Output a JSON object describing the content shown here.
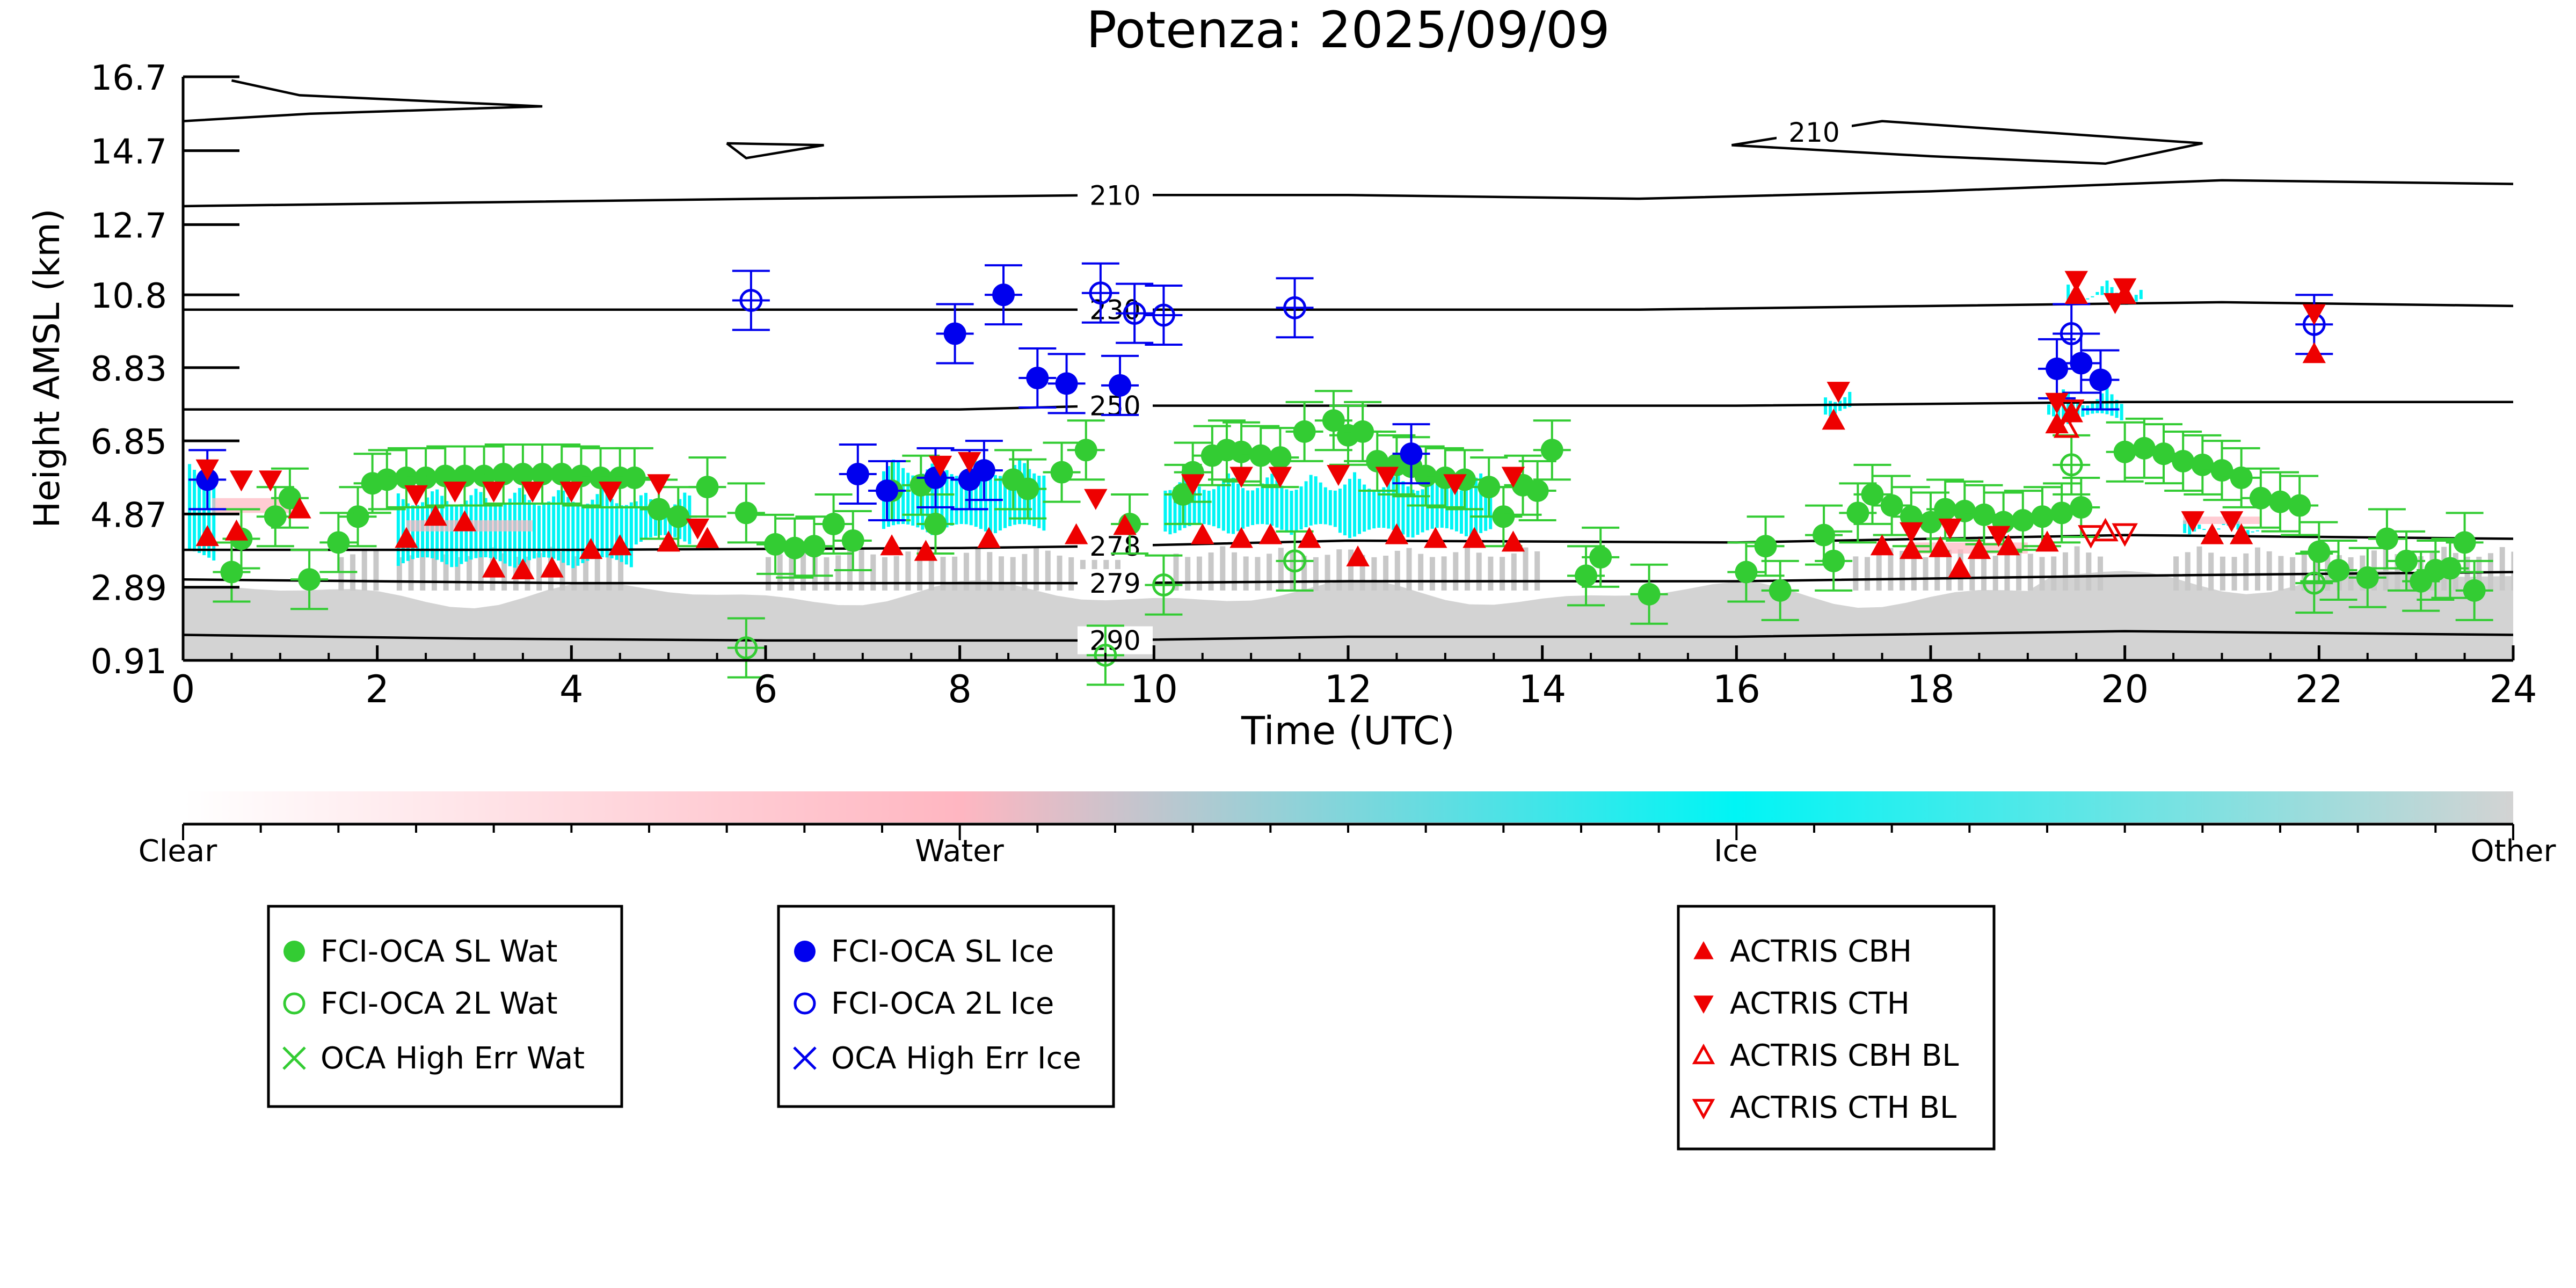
{
  "chart_data": {
    "type": "scatter",
    "title": "Potenza: 2025/09/09",
    "xlabel": "Time (UTC)",
    "ylabel": "Height AMSL (km)",
    "xlim": [
      0,
      24
    ],
    "ylim": [
      0.91,
      16.7
    ],
    "xticks": [
      0,
      2,
      4,
      6,
      8,
      10,
      12,
      14,
      16,
      18,
      20,
      22,
      24
    ],
    "yticks": [
      0.91,
      2.89,
      4.87,
      6.85,
      8.83,
      10.8,
      12.7,
      14.7,
      16.7
    ],
    "ytick_labels": [
      "0.91",
      "2.89",
      "4.87",
      "6.85",
      "8.83",
      "10.8",
      "12.7",
      "14.7",
      "16.7"
    ],
    "colorbar": {
      "labels": [
        "Clear",
        "Water",
        "Ice",
        "Other"
      ],
      "colors": [
        "#ffffff",
        "#ffb6c1",
        "#00f5f5",
        "#d3d3d3"
      ]
    },
    "contours": [
      {
        "label": "210",
        "label_x": 9.6,
        "points": [
          [
            0,
            13.2
          ],
          [
            3,
            13.3
          ],
          [
            6,
            13.4
          ],
          [
            9.5,
            13.5
          ],
          [
            12,
            13.5
          ],
          [
            15,
            13.4
          ],
          [
            18,
            13.6
          ],
          [
            21,
            13.9
          ],
          [
            24,
            13.8
          ]
        ]
      },
      {
        "label": "230",
        "label_x": 9.6,
        "points": [
          [
            0,
            10.4
          ],
          [
            3,
            10.4
          ],
          [
            6,
            10.4
          ],
          [
            9.5,
            10.4
          ],
          [
            12,
            10.4
          ],
          [
            15,
            10.4
          ],
          [
            18,
            10.5
          ],
          [
            21,
            10.6
          ],
          [
            24,
            10.5
          ]
        ]
      },
      {
        "label": "250",
        "label_x": 9.6,
        "points": [
          [
            0,
            7.7
          ],
          [
            4,
            7.7
          ],
          [
            8,
            7.7
          ],
          [
            9.5,
            7.8
          ],
          [
            12,
            7.8
          ],
          [
            16,
            7.8
          ],
          [
            20,
            7.9
          ],
          [
            24,
            7.9
          ]
        ]
      },
      {
        "label": "278",
        "label_x": 9.6,
        "points": [
          [
            0,
            3.9
          ],
          [
            4,
            3.9
          ],
          [
            8,
            3.95
          ],
          [
            9.5,
            4.0
          ],
          [
            12,
            4.15
          ],
          [
            16,
            4.1
          ],
          [
            20,
            4.3
          ],
          [
            24,
            4.2
          ]
        ]
      },
      {
        "label": "279",
        "label_x": 9.6,
        "points": [
          [
            0,
            3.1
          ],
          [
            4,
            3.0
          ],
          [
            8,
            3.0
          ],
          [
            9.5,
            3.0
          ],
          [
            12,
            3.05
          ],
          [
            16,
            3.05
          ],
          [
            20,
            3.2
          ],
          [
            24,
            3.3
          ]
        ]
      },
      {
        "label": "290",
        "label_x": 9.6,
        "points": [
          [
            0,
            1.6
          ],
          [
            3,
            1.5
          ],
          [
            6,
            1.45
          ],
          [
            9.5,
            1.45
          ],
          [
            12,
            1.55
          ],
          [
            16,
            1.55
          ],
          [
            20,
            1.7
          ],
          [
            24,
            1.6
          ]
        ]
      }
    ],
    "contour_islands": [
      {
        "label": "210",
        "label_x": 16.8,
        "points": [
          [
            15.95,
            14.85
          ],
          [
            17.5,
            15.5
          ],
          [
            20.8,
            14.9
          ],
          [
            19.8,
            14.35
          ],
          [
            18.0,
            14.55
          ],
          [
            15.95,
            14.85
          ]
        ]
      },
      {
        "label": "",
        "label_x": 0,
        "points": [
          [
            5.6,
            14.9
          ],
          [
            6.6,
            14.85
          ],
          [
            5.8,
            14.5
          ],
          [
            5.6,
            14.9
          ]
        ]
      },
      {
        "label": "",
        "label_x": 0,
        "points": [
          [
            0.5,
            16.6
          ],
          [
            1.2,
            16.2
          ],
          [
            3.7,
            15.9
          ],
          [
            1.3,
            15.7
          ],
          [
            0,
            15.5
          ]
        ]
      }
    ],
    "series": [
      {
        "name": "FCI-OCA SL Wat",
        "marker": "circle-filled",
        "color": "#33cc33",
        "points": [
          [
            0.5,
            3.3
          ],
          [
            0.6,
            4.2
          ],
          [
            0.95,
            4.8
          ],
          [
            1.1,
            5.3
          ],
          [
            1.3,
            3.1
          ],
          [
            1.6,
            4.1
          ],
          [
            1.8,
            4.8
          ],
          [
            1.95,
            5.7
          ],
          [
            2.1,
            5.8
          ],
          [
            2.3,
            5.85
          ],
          [
            2.5,
            5.85
          ],
          [
            2.7,
            5.9
          ],
          [
            2.9,
            5.9
          ],
          [
            3.1,
            5.9
          ],
          [
            3.3,
            5.95
          ],
          [
            3.5,
            5.95
          ],
          [
            3.7,
            5.95
          ],
          [
            3.9,
            5.95
          ],
          [
            4.1,
            5.9
          ],
          [
            4.3,
            5.85
          ],
          [
            4.5,
            5.85
          ],
          [
            4.65,
            5.85
          ],
          [
            4.9,
            5.0
          ],
          [
            5.1,
            4.8
          ],
          [
            5.4,
            5.6
          ],
          [
            5.8,
            4.9
          ],
          [
            6.1,
            4.05
          ],
          [
            6.3,
            3.95
          ],
          [
            6.5,
            4.0
          ],
          [
            6.7,
            4.6
          ],
          [
            6.9,
            4.15
          ],
          [
            7.3,
            5.5
          ],
          [
            7.6,
            5.65
          ],
          [
            7.75,
            4.6
          ],
          [
            8.55,
            5.8
          ],
          [
            8.7,
            5.55
          ],
          [
            9.05,
            6.0
          ],
          [
            9.3,
            6.6
          ],
          [
            9.75,
            4.6
          ],
          [
            10.3,
            5.4
          ],
          [
            10.4,
            6.0
          ],
          [
            10.6,
            6.45
          ],
          [
            10.75,
            6.6
          ],
          [
            10.9,
            6.55
          ],
          [
            11.1,
            6.45
          ],
          [
            11.3,
            6.4
          ],
          [
            11.55,
            7.1
          ],
          [
            11.85,
            7.4
          ],
          [
            12.0,
            7.0
          ],
          [
            12.15,
            7.1
          ],
          [
            12.3,
            6.3
          ],
          [
            12.5,
            6.2
          ],
          [
            12.65,
            6.15
          ],
          [
            12.8,
            5.9
          ],
          [
            13.0,
            5.85
          ],
          [
            13.2,
            5.8
          ],
          [
            13.45,
            5.6
          ],
          [
            13.6,
            4.8
          ],
          [
            13.8,
            5.65
          ],
          [
            13.95,
            5.5
          ],
          [
            14.1,
            6.6
          ],
          [
            14.45,
            3.2
          ],
          [
            14.6,
            3.7
          ],
          [
            15.1,
            2.7
          ],
          [
            16.1,
            3.3
          ],
          [
            16.3,
            4.0
          ],
          [
            16.45,
            2.8
          ],
          [
            16.9,
            4.3
          ],
          [
            17.0,
            3.6
          ],
          [
            17.25,
            4.9
          ],
          [
            17.4,
            5.4
          ],
          [
            17.6,
            5.1
          ],
          [
            17.8,
            4.8
          ],
          [
            18.0,
            4.65
          ],
          [
            18.15,
            5.0
          ],
          [
            18.35,
            4.95
          ],
          [
            18.55,
            4.85
          ],
          [
            18.75,
            4.65
          ],
          [
            18.95,
            4.7
          ],
          [
            19.15,
            4.8
          ],
          [
            19.35,
            4.9
          ],
          [
            19.55,
            5.05
          ],
          [
            20.0,
            6.55
          ],
          [
            20.2,
            6.65
          ],
          [
            20.4,
            6.5
          ],
          [
            20.6,
            6.3
          ],
          [
            20.8,
            6.2
          ],
          [
            21.0,
            6.05
          ],
          [
            21.2,
            5.85
          ],
          [
            21.4,
            5.3
          ],
          [
            21.6,
            5.2
          ],
          [
            21.8,
            5.1
          ],
          [
            22.0,
            3.85
          ],
          [
            22.2,
            3.35
          ],
          [
            22.5,
            3.15
          ],
          [
            22.7,
            4.2
          ],
          [
            22.9,
            3.6
          ],
          [
            23.05,
            3.05
          ],
          [
            23.2,
            3.35
          ],
          [
            23.35,
            3.4
          ],
          [
            23.5,
            4.1
          ],
          [
            23.6,
            2.8
          ]
        ]
      },
      {
        "name": "FCI-OCA 2L Wat",
        "marker": "circle-open",
        "color": "#33cc33",
        "points": [
          [
            5.8,
            1.25
          ],
          [
            9.5,
            1.05
          ],
          [
            10.1,
            2.95
          ],
          [
            11.45,
            3.6
          ],
          [
            19.45,
            6.2
          ],
          [
            21.95,
            3.0
          ]
        ]
      },
      {
        "name": "OCA High Err Wat",
        "marker": "x",
        "color": "#33cc33",
        "points": []
      },
      {
        "name": "FCI-OCA SL Ice",
        "marker": "circle-filled",
        "color": "#0000ee",
        "points": [
          [
            0.25,
            5.8
          ],
          [
            6.95,
            5.95
          ],
          [
            7.25,
            5.5
          ],
          [
            7.75,
            5.85
          ],
          [
            8.1,
            5.8
          ],
          [
            8.25,
            6.05
          ],
          [
            7.95,
            9.75
          ],
          [
            8.45,
            10.8
          ],
          [
            8.8,
            8.55
          ],
          [
            9.1,
            8.4
          ],
          [
            9.65,
            8.35
          ],
          [
            12.65,
            6.5
          ],
          [
            19.3,
            8.8
          ],
          [
            19.55,
            8.95
          ],
          [
            19.75,
            8.5
          ]
        ]
      },
      {
        "name": "FCI-OCA 2L Ice",
        "marker": "circle-open",
        "color": "#0000ee",
        "points": [
          [
            5.85,
            10.65
          ],
          [
            9.45,
            10.85
          ],
          [
            9.8,
            10.3
          ],
          [
            10.1,
            10.25
          ],
          [
            11.45,
            10.45
          ],
          [
            19.45,
            9.75
          ],
          [
            21.95,
            10.0
          ]
        ]
      },
      {
        "name": "OCA High Err Ice",
        "marker": "x",
        "color": "#0000ee",
        "points": []
      },
      {
        "name": "ACTRIS CBH",
        "marker": "triangle-up-filled",
        "color": "#ee0000",
        "points": [
          [
            0.25,
            4.25
          ],
          [
            0.55,
            4.4
          ],
          [
            1.2,
            5.0
          ],
          [
            2.3,
            4.2
          ],
          [
            2.6,
            4.8
          ],
          [
            2.9,
            4.65
          ],
          [
            3.2,
            3.4
          ],
          [
            3.5,
            3.35
          ],
          [
            3.8,
            3.4
          ],
          [
            4.2,
            3.9
          ],
          [
            4.5,
            4.0
          ],
          [
            5.0,
            4.1
          ],
          [
            5.4,
            4.2
          ],
          [
            7.3,
            4.0
          ],
          [
            7.65,
            3.85
          ],
          [
            8.3,
            4.2
          ],
          [
            9.2,
            4.3
          ],
          [
            9.7,
            4.55
          ],
          [
            10.5,
            4.3
          ],
          [
            10.9,
            4.2
          ],
          [
            11.2,
            4.3
          ],
          [
            11.6,
            4.2
          ],
          [
            12.1,
            3.7
          ],
          [
            12.5,
            4.3
          ],
          [
            12.9,
            4.2
          ],
          [
            13.3,
            4.2
          ],
          [
            13.7,
            4.1
          ],
          [
            17.0,
            7.4
          ],
          [
            17.5,
            4.0
          ],
          [
            17.8,
            3.9
          ],
          [
            18.1,
            3.95
          ],
          [
            18.3,
            3.4
          ],
          [
            18.5,
            3.9
          ],
          [
            18.8,
            4.0
          ],
          [
            19.2,
            4.1
          ],
          [
            19.3,
            7.3
          ],
          [
            19.45,
            7.6
          ],
          [
            19.5,
            10.8
          ],
          [
            20.0,
            10.8
          ],
          [
            20.9,
            4.3
          ],
          [
            21.2,
            4.3
          ],
          [
            21.95,
            9.2
          ]
        ]
      },
      {
        "name": "ACTRIS CTH",
        "marker": "triangle-down-filled",
        "color": "#ee0000",
        "points": [
          [
            0.25,
            6.1
          ],
          [
            0.6,
            5.8
          ],
          [
            0.9,
            5.8
          ],
          [
            2.4,
            5.4
          ],
          [
            2.8,
            5.5
          ],
          [
            3.2,
            5.5
          ],
          [
            3.6,
            5.5
          ],
          [
            4.0,
            5.5
          ],
          [
            4.4,
            5.5
          ],
          [
            4.9,
            5.7
          ],
          [
            5.3,
            4.5
          ],
          [
            7.8,
            6.2
          ],
          [
            8.1,
            6.3
          ],
          [
            9.4,
            5.3
          ],
          [
            10.4,
            5.7
          ],
          [
            10.9,
            5.9
          ],
          [
            11.3,
            5.9
          ],
          [
            11.9,
            5.95
          ],
          [
            12.4,
            5.9
          ],
          [
            13.1,
            5.7
          ],
          [
            13.7,
            5.9
          ],
          [
            17.05,
            8.2
          ],
          [
            17.8,
            4.4
          ],
          [
            18.2,
            4.5
          ],
          [
            18.7,
            4.3
          ],
          [
            19.3,
            7.9
          ],
          [
            19.5,
            11.2
          ],
          [
            19.9,
            10.6
          ],
          [
            20.0,
            11.0
          ],
          [
            20.7,
            4.7
          ],
          [
            21.1,
            4.7
          ],
          [
            21.95,
            10.3
          ]
        ]
      },
      {
        "name": "ACTRIS CBH BL",
        "marker": "triangle-up-open",
        "color": "#ee0000",
        "points": [
          [
            19.4,
            7.2
          ],
          [
            19.8,
            4.4
          ]
        ]
      },
      {
        "name": "ACTRIS CTH BL",
        "marker": "triangle-down-open",
        "color": "#ee0000",
        "points": [
          [
            19.45,
            7.7
          ],
          [
            19.65,
            4.3
          ],
          [
            20.0,
            4.35
          ]
        ]
      }
    ]
  }
}
